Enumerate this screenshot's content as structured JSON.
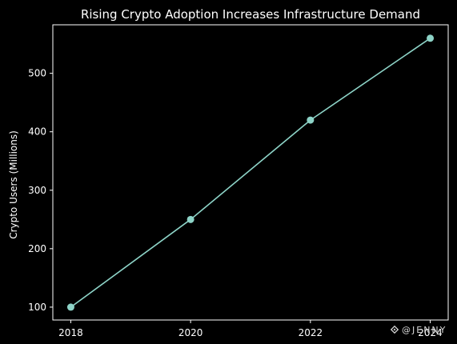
{
  "chart_data": {
    "type": "line",
    "title": "Rising Crypto Adoption Increases Infrastructure Demand",
    "xlabel": "",
    "ylabel": "Crypto Users (Millions)",
    "x": [
      2018,
      2020,
      2022,
      2024
    ],
    "xticks": [
      "2018",
      "2020",
      "2022",
      "2024"
    ],
    "yticks": [
      "100",
      "200",
      "300",
      "400",
      "500"
    ],
    "xlim": [
      2017.7,
      2024.3
    ],
    "ylim": [
      78,
      583
    ],
    "grid": false,
    "series": [
      {
        "values": [
          100,
          250,
          420,
          560
        ],
        "color": "#8dd3c7",
        "marker": "circle"
      }
    ]
  },
  "watermark": {
    "text": "@JENNY",
    "icon": "binance-logo-icon"
  }
}
